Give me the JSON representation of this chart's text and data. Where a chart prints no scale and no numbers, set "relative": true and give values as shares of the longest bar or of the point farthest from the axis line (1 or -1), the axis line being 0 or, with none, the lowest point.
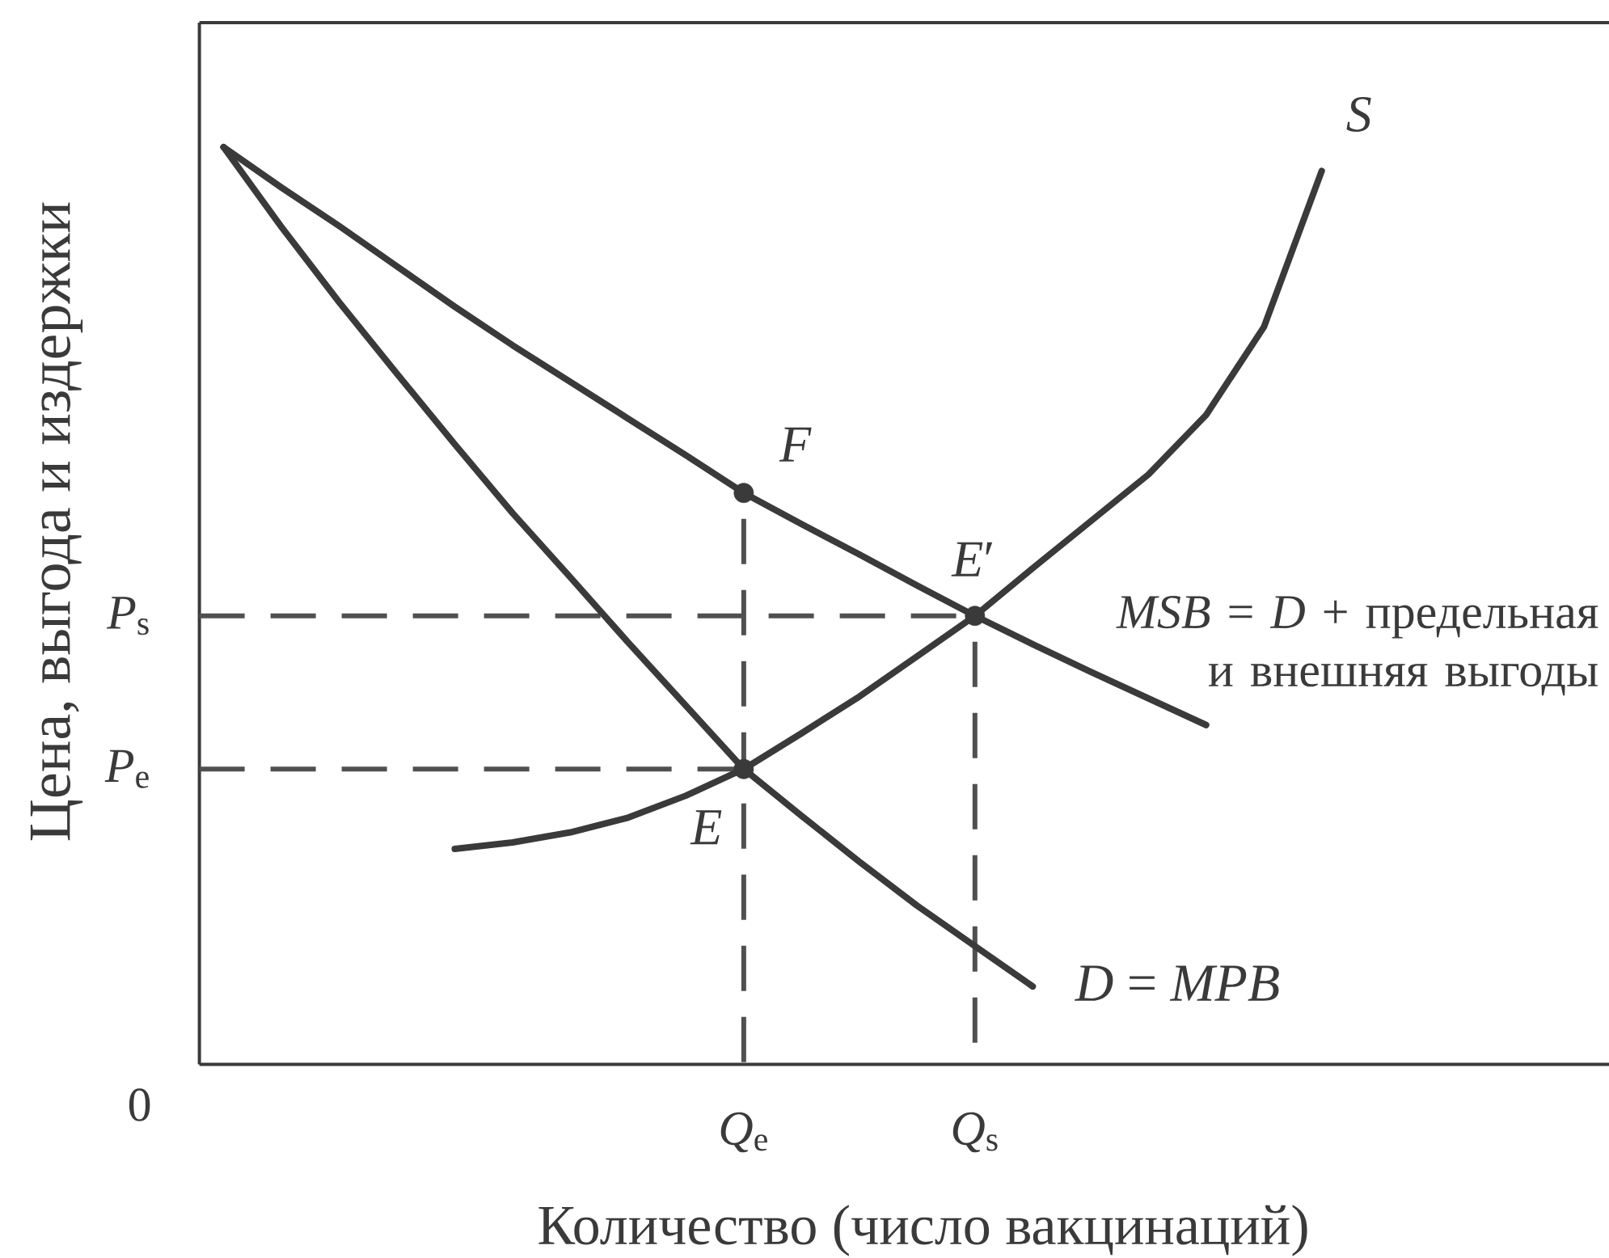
{
  "chart_data": {
    "type": "line",
    "relative": true,
    "xlabel": "Количество (число вакцинаций)",
    "ylabel": "Цена, выгода и издержки",
    "categories": [
      null,
      null,
      null,
      null,
      null,
      null,
      null,
      null,
      null,
      "*Q*$_{e}$",
      null,
      null,
      null,
      "*Q*$_{s}$",
      null,
      null,
      null,
      null,
      null,
      null,
      null,
      null,
      null,
      null
    ],
    "series": [
      {
        "name": "*MSB* = *D* + предельная и внешняя выгоды",
        "color": "#3a3a3a",
        "values": [
          1.0,
          0.956,
          0.914,
          0.87,
          0.826,
          0.784,
          0.744,
          0.704,
          0.664,
          0.623,
          0.589,
          0.556,
          0.522,
          0.489,
          0.458,
          0.428,
          0.399,
          0.37,
          null,
          null,
          null,
          null,
          null,
          null
        ]
      },
      {
        "name": "*D* = *MPB*",
        "color": "#3a3a3a",
        "values": [
          1.0,
          0.913,
          0.831,
          0.753,
          0.676,
          0.601,
          0.531,
          0.46,
          0.391,
          0.322,
          0.271,
          0.221,
          0.173,
          0.129,
          0.085,
          null,
          null,
          null,
          null,
          null,
          null,
          null,
          null,
          null
        ]
      },
      {
        "name": "*S*",
        "color": "#3a3a3a",
        "values": [
          null,
          null,
          null,
          null,
          0.235,
          0.242,
          0.253,
          0.269,
          0.293,
          0.322,
          0.361,
          0.401,
          0.445,
          0.489,
          0.541,
          0.592,
          0.643,
          0.708,
          0.804,
          0.974,
          null,
          null,
          null,
          null
        ]
      },
      {
        "name": "*E*",
        "type": "scatter",
        "marker": "circle",
        "color": "#3a3a3a",
        "values": [
          null,
          null,
          null,
          null,
          null,
          null,
          null,
          null,
          null,
          0.322,
          null,
          null,
          null,
          null,
          null,
          null,
          null,
          null,
          null,
          null,
          null,
          null,
          null,
          null
        ]
      },
      {
        "name": "*E*′",
        "type": "scatter",
        "marker": "circle",
        "color": "#3a3a3a",
        "values": [
          null,
          null,
          null,
          null,
          null,
          null,
          null,
          null,
          null,
          null,
          null,
          null,
          null,
          0.489,
          null,
          null,
          null,
          null,
          null,
          null,
          null,
          null,
          null,
          null
        ]
      },
      {
        "name": "*F*",
        "type": "scatter",
        "marker": "circle",
        "color": "#3a3a3a",
        "values": [
          null,
          null,
          null,
          null,
          null,
          null,
          null,
          null,
          null,
          0.623,
          null,
          null,
          null,
          null,
          null,
          null,
          null,
          null,
          null,
          null,
          null,
          null,
          null,
          null
        ]
      }
    ],
    "ref_lines": [
      {
        "axis": "y",
        "value": 0.489,
        "label": "*P*$_{s}$",
        "line_style": "dashed",
        "color": "#505050"
      },
      {
        "axis": "y",
        "value": 0.322,
        "label": "*P*$_{e}$",
        "line_style": "dashed",
        "color": "#505050"
      },
      {
        "axis": "x",
        "value": "*Q*$_{e}$",
        "line_style": "dashed",
        "color": "#505050"
      },
      {
        "axis": "x",
        "value": "*Q*$_{s}$",
        "line_style": "dashed",
        "color": "#505050"
      }
    ],
    "annotations": [
      "0"
    ]
  }
}
